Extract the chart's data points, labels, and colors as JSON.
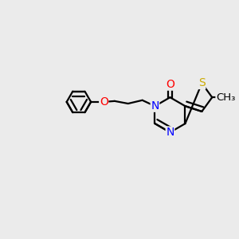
{
  "bg_color": "#ebebeb",
  "bond_color": "#000000",
  "line_width": 1.6,
  "atom_colors": {
    "N": "#0000ff",
    "O": "#ff0000",
    "S": "#ccaa00",
    "C": "#000000"
  },
  "font_size": 10,
  "figsize": [
    3.0,
    3.0
  ],
  "dpi": 100
}
